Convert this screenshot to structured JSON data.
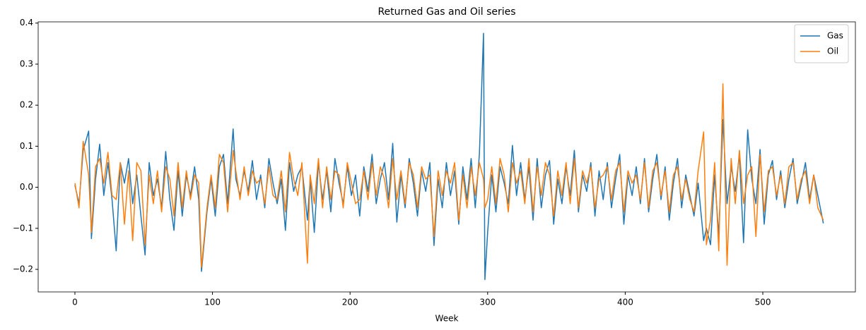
{
  "chart_data": {
    "type": "line",
    "title": "Returned Gas and Oil series",
    "xlabel": "Week",
    "x": [
      0,
      3,
      6,
      10,
      12,
      15,
      18,
      21,
      24,
      27,
      30,
      33,
      36,
      39,
      42,
      45,
      48,
      51,
      54,
      57,
      60,
      63,
      66,
      69,
      72,
      75,
      78,
      81,
      84,
      87,
      90,
      92,
      96,
      99,
      102,
      105,
      108,
      111,
      115,
      117,
      120,
      123,
      126,
      129,
      132,
      135,
      138,
      141,
      144,
      147,
      150,
      153,
      156,
      159,
      162,
      165,
      169,
      171,
      174,
      177,
      180,
      183,
      186,
      189,
      192,
      195,
      198,
      201,
      204,
      207,
      210,
      213,
      216,
      219,
      222,
      225,
      228,
      231,
      234,
      237,
      240,
      243,
      246,
      249,
      252,
      255,
      258,
      261,
      264,
      267,
      270,
      273,
      276,
      279,
      282,
      285,
      288,
      291,
      294,
      297,
      298,
      300,
      303,
      306,
      309,
      312,
      315,
      318,
      321,
      324,
      327,
      330,
      333,
      336,
      339,
      342,
      345,
      348,
      351,
      354,
      357,
      360,
      363,
      366,
      369,
      372,
      375,
      378,
      381,
      384,
      387,
      390,
      393,
      396,
      399,
      402,
      405,
      408,
      411,
      414,
      417,
      420,
      423,
      426,
      429,
      432,
      435,
      438,
      441,
      444,
      447,
      450,
      453,
      457,
      459,
      462,
      465,
      468,
      471,
      474,
      477,
      480,
      483,
      486,
      489,
      492,
      495,
      498,
      501,
      504,
      507,
      510,
      513,
      516,
      519,
      522,
      525,
      528,
      531,
      534,
      537,
      540,
      544
    ],
    "series": [
      {
        "name": "Gas",
        "color": "#1f77b4",
        "values": [
          0.005,
          -0.04,
          0.09,
          0.137,
          -0.125,
          0.02,
          0.105,
          -0.02,
          0.06,
          -0.03,
          -0.155,
          0.06,
          0.01,
          0.07,
          -0.04,
          0.03,
          -0.07,
          -0.165,
          0.06,
          -0.02,
          0.02,
          -0.05,
          0.087,
          -0.03,
          -0.105,
          0.04,
          -0.07,
          0.03,
          -0.02,
          0.05,
          -0.03,
          -0.205,
          -0.06,
          0.02,
          -0.07,
          0.05,
          0.08,
          -0.04,
          0.142,
          0.02,
          -0.02,
          0.04,
          -0.01,
          0.065,
          -0.03,
          0.03,
          -0.05,
          0.07,
          0.01,
          -0.04,
          0.02,
          -0.105,
          0.06,
          -0.01,
          0.03,
          0.05,
          -0.08,
          0.02,
          -0.11,
          0.06,
          -0.03,
          0.04,
          -0.06,
          0.07,
          0.01,
          -0.04,
          0.05,
          -0.02,
          0.03,
          -0.07,
          0.05,
          -0.01,
          0.08,
          -0.04,
          0.02,
          0.06,
          -0.03,
          0.107,
          -0.085,
          0.03,
          -0.05,
          0.07,
          0.01,
          -0.07,
          0.04,
          -0.01,
          0.06,
          -0.142,
          0.02,
          -0.05,
          0.06,
          -0.02,
          0.04,
          -0.09,
          0.05,
          -0.03,
          0.07,
          -0.05,
          0.08,
          0.375,
          -0.225,
          -0.11,
          0.03,
          -0.06,
          0.05,
          0.01,
          -0.04,
          0.102,
          -0.02,
          0.06,
          -0.03,
          0.05,
          -0.08,
          0.07,
          -0.05,
          0.03,
          0.065,
          -0.09,
          0.02,
          -0.04,
          0.05,
          -0.02,
          0.09,
          -0.06,
          0.03,
          -0.01,
          0.06,
          -0.07,
          0.04,
          -0.03,
          0.06,
          -0.05,
          0.02,
          0.08,
          -0.09,
          0.03,
          -0.02,
          0.05,
          -0.04,
          0.07,
          -0.06,
          0.02,
          0.08,
          -0.03,
          0.05,
          -0.08,
          0.01,
          0.07,
          -0.05,
          0.03,
          -0.02,
          -0.07,
          0.01,
          -0.13,
          -0.1,
          -0.14,
          0.03,
          -0.12,
          0.165,
          -0.04,
          0.05,
          -0.01,
          0.08,
          -0.135,
          0.14,
          0.02,
          -0.04,
          0.092,
          -0.09,
          0.03,
          0.065,
          -0.03,
          0.04,
          -0.05,
          0.02,
          0.07,
          -0.04,
          0.01,
          0.06,
          -0.03,
          0.03,
          -0.02,
          -0.088
        ]
      },
      {
        "name": "Oil",
        "color": "#ff7f0e",
        "values": [
          0.01,
          -0.05,
          0.112,
          0.03,
          -0.11,
          0.05,
          0.07,
          0.01,
          0.085,
          -0.02,
          -0.03,
          0.06,
          -0.09,
          0.04,
          -0.13,
          0.06,
          0.04,
          -0.14,
          0.03,
          -0.04,
          0.04,
          -0.06,
          0.05,
          0.02,
          -0.07,
          0.06,
          -0.05,
          0.04,
          -0.03,
          0.03,
          0.01,
          -0.195,
          -0.05,
          0.03,
          -0.05,
          0.08,
          0.06,
          -0.06,
          0.09,
          0.04,
          -0.03,
          0.05,
          -0.02,
          0.04,
          0.01,
          0.02,
          -0.04,
          0.05,
          -0.02,
          -0.03,
          0.04,
          -0.06,
          0.085,
          0.02,
          -0.02,
          0.06,
          -0.185,
          0.03,
          -0.04,
          0.07,
          -0.05,
          0.05,
          -0.03,
          0.04,
          0.03,
          -0.05,
          0.06,
          0.01,
          -0.04,
          -0.03,
          0.04,
          -0.03,
          0.06,
          -0.02,
          0.05,
          0.02,
          -0.05,
          0.07,
          -0.03,
          0.04,
          -0.04,
          0.06,
          0.03,
          -0.05,
          0.05,
          0.02,
          0.03,
          -0.12,
          0.04,
          -0.02,
          0.04,
          0.01,
          0.06,
          -0.08,
          0.03,
          -0.05,
          0.05,
          -0.02,
          0.06,
          0.02,
          -0.05,
          -0.03,
          0.05,
          -0.04,
          0.07,
          0.03,
          -0.06,
          0.06,
          0.01,
          0.04,
          -0.04,
          0.07,
          -0.06,
          0.05,
          -0.02,
          0.06,
          0.03,
          -0.07,
          0.04,
          -0.02,
          0.06,
          -0.04,
          0.07,
          -0.05,
          0.04,
          0.01,
          0.05,
          -0.05,
          0.02,
          0.03,
          0.05,
          -0.03,
          0.04,
          0.06,
          -0.06,
          0.04,
          0.01,
          0.03,
          -0.03,
          0.06,
          -0.05,
          0.04,
          0.06,
          -0.02,
          0.04,
          -0.06,
          0.03,
          0.05,
          -0.03,
          0.02,
          -0.03,
          -0.06,
          0.04,
          0.135,
          -0.14,
          -0.08,
          0.06,
          -0.155,
          0.252,
          -0.19,
          0.07,
          -0.04,
          0.09,
          -0.04,
          0.03,
          0.05,
          -0.12,
          0.08,
          -0.06,
          0.04,
          0.05,
          -0.02,
          0.03,
          -0.04,
          0.05,
          0.06,
          -0.03,
          0.02,
          0.04,
          -0.04,
          0.03,
          -0.05,
          -0.08
        ]
      }
    ],
    "xlim": [
      -26.7,
      567.3
    ],
    "xticks": [
      0,
      100,
      200,
      300,
      400,
      500
    ],
    "ylim": [
      -0.255,
      0.403
    ],
    "yticks": [
      {
        "value": -0.2,
        "label": "−0.2"
      },
      {
        "value": -0.1,
        "label": "−0.1"
      },
      {
        "value": 0,
        "label": "0.0"
      },
      0.1,
      0.2,
      0.3,
      0.4
    ],
    "legend": "upper right"
  }
}
